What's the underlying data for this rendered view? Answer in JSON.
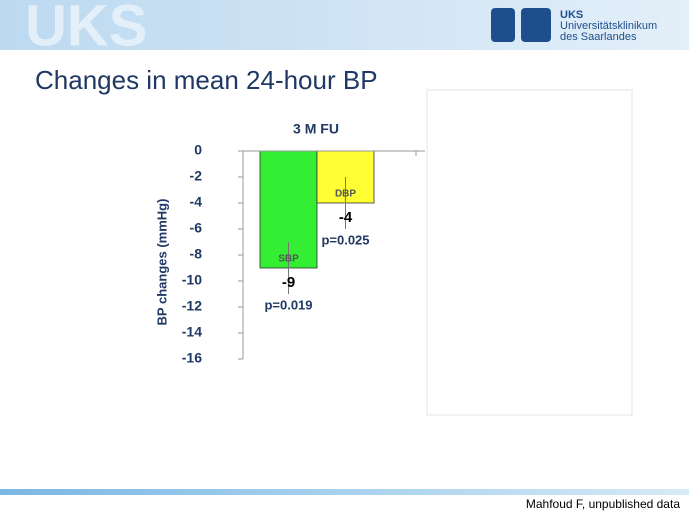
{
  "header": {
    "watermark": "UKS",
    "logo_short": "UKS",
    "logo_line1": "Universitätsklinikum",
    "logo_line2": "des Saarlandes"
  },
  "slide_title": "Changes in mean 24-hour BP",
  "chart_data": {
    "type": "bar",
    "title": "3 M FU",
    "y_label": "BP changes (mmHg)",
    "categories": [
      "SBP",
      "DBP"
    ],
    "values": [
      -9,
      -4
    ],
    "errors": [
      2,
      2
    ],
    "colors": [
      "#33ee33",
      "#ffff33"
    ],
    "annotations": [
      "p=0.019",
      "p=0.025"
    ],
    "ylim": [
      -16,
      0
    ],
    "yticks": [
      0,
      -2,
      -4,
      -6,
      -8,
      -10,
      -12,
      -14,
      -16
    ]
  },
  "footer": "Mahfoud F, unpublished data"
}
